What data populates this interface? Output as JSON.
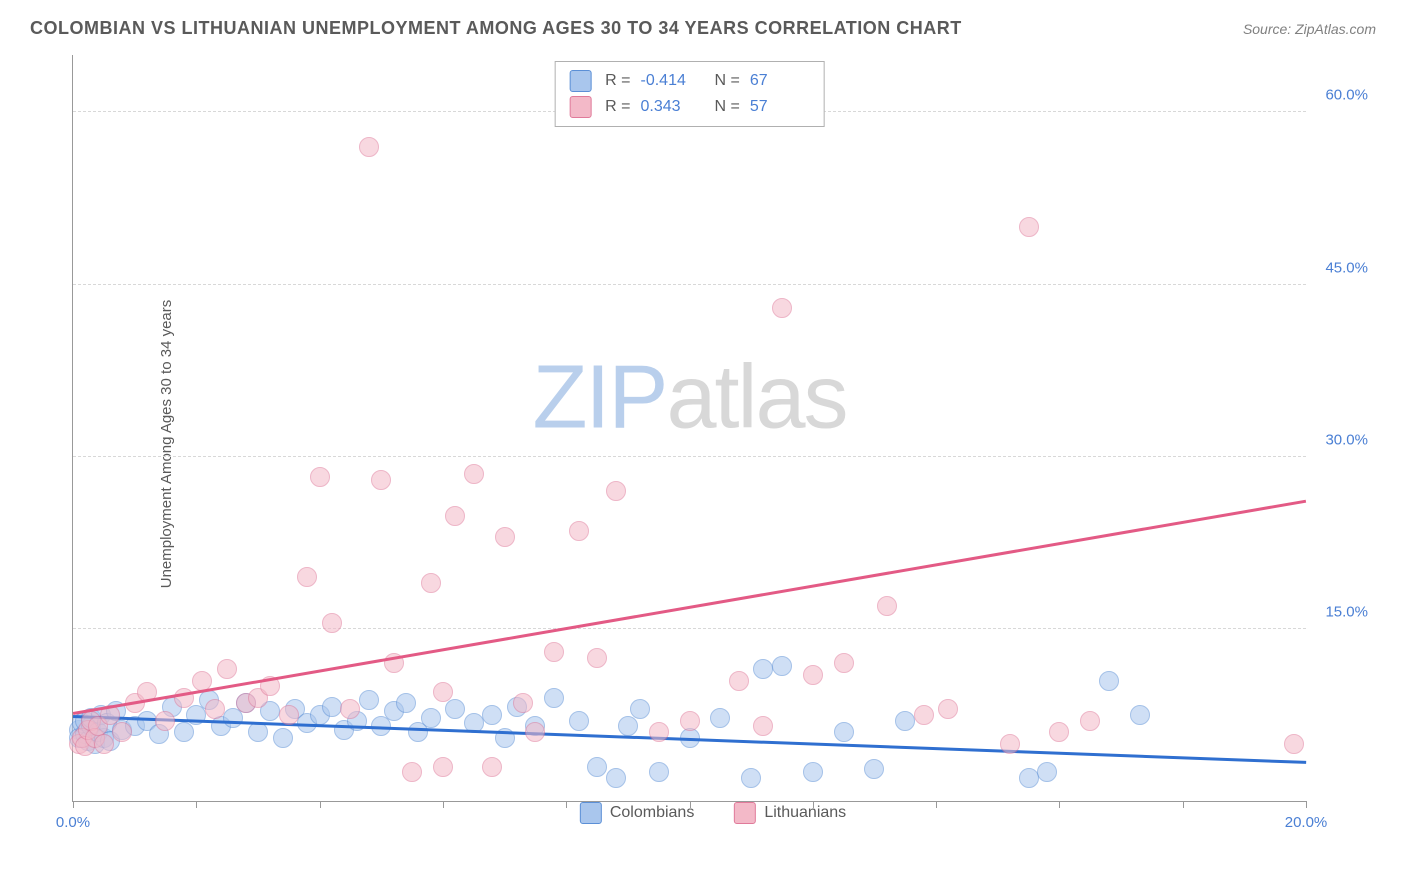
{
  "header": {
    "title": "COLOMBIAN VS LITHUANIAN UNEMPLOYMENT AMONG AGES 30 TO 34 YEARS CORRELATION CHART",
    "source": "Source: ZipAtlas.com"
  },
  "chart": {
    "type": "scatter",
    "ylabel": "Unemployment Among Ages 30 to 34 years",
    "xlim": [
      0,
      20
    ],
    "ylim": [
      0,
      65
    ],
    "xtick_positions": [
      0,
      2,
      4,
      6,
      8,
      10,
      12,
      14,
      16,
      18,
      20
    ],
    "xtick_labels": {
      "0": "0.0%",
      "20": "20.0%"
    },
    "ytick_positions": [
      15,
      30,
      45,
      60
    ],
    "ytick_labels": {
      "15": "15.0%",
      "30": "30.0%",
      "45": "45.0%",
      "60": "60.0%"
    },
    "xtick_label_color": "#4a7fd4",
    "ytick_label_color": "#4a7fd4",
    "grid_color": "#d8d8d8",
    "background_color": "#ffffff",
    "watermark": {
      "text_bold": "ZIP",
      "text_light": "atlas"
    },
    "series": [
      {
        "name": "Colombians",
        "fill_color": "#a9c6ed",
        "stroke_color": "#5b8fd6",
        "fill_opacity": 0.55,
        "marker_radius": 10,
        "trend": {
          "x1": 0,
          "y1": 7.2,
          "x2": 20,
          "y2": 3.2,
          "color": "#2f6fd0",
          "width": 3
        },
        "R": "-0.414",
        "N": "67",
        "points": [
          [
            0.1,
            6.2
          ],
          [
            0.1,
            5.5
          ],
          [
            0.15,
            6.8
          ],
          [
            0.2,
            5.8
          ],
          [
            0.2,
            7.0
          ],
          [
            0.25,
            5.2
          ],
          [
            0.3,
            6.5
          ],
          [
            0.3,
            7.2
          ],
          [
            0.35,
            5.0
          ],
          [
            0.4,
            6.0
          ],
          [
            0.45,
            7.5
          ],
          [
            0.5,
            5.5
          ],
          [
            0.55,
            6.8
          ],
          [
            0.6,
            5.2
          ],
          [
            0.7,
            7.8
          ],
          [
            0.8,
            6.2
          ],
          [
            1.0,
            6.5
          ],
          [
            1.2,
            7.0
          ],
          [
            1.4,
            5.8
          ],
          [
            1.6,
            8.2
          ],
          [
            1.8,
            6.0
          ],
          [
            2.0,
            7.5
          ],
          [
            2.2,
            8.8
          ],
          [
            2.4,
            6.5
          ],
          [
            2.6,
            7.2
          ],
          [
            2.8,
            8.5
          ],
          [
            3.0,
            6.0
          ],
          [
            3.2,
            7.8
          ],
          [
            3.4,
            5.5
          ],
          [
            3.6,
            8.0
          ],
          [
            3.8,
            6.8
          ],
          [
            4.0,
            7.5
          ],
          [
            4.2,
            8.2
          ],
          [
            4.4,
            6.2
          ],
          [
            4.6,
            7.0
          ],
          [
            4.8,
            8.8
          ],
          [
            5.0,
            6.5
          ],
          [
            5.2,
            7.8
          ],
          [
            5.4,
            8.5
          ],
          [
            5.6,
            6.0
          ],
          [
            5.8,
            7.2
          ],
          [
            6.2,
            8.0
          ],
          [
            6.5,
            6.8
          ],
          [
            6.8,
            7.5
          ],
          [
            7.0,
            5.5
          ],
          [
            7.2,
            8.2
          ],
          [
            7.5,
            6.5
          ],
          [
            7.8,
            9.0
          ],
          [
            8.2,
            7.0
          ],
          [
            8.5,
            3.0
          ],
          [
            8.8,
            2.0
          ],
          [
            9.0,
            6.5
          ],
          [
            9.2,
            8.0
          ],
          [
            9.5,
            2.5
          ],
          [
            10.0,
            5.5
          ],
          [
            10.5,
            7.2
          ],
          [
            11.0,
            2.0
          ],
          [
            11.2,
            11.5
          ],
          [
            11.5,
            11.8
          ],
          [
            12.0,
            2.5
          ],
          [
            12.5,
            6.0
          ],
          [
            13.0,
            2.8
          ],
          [
            13.5,
            7.0
          ],
          [
            15.5,
            2.0
          ],
          [
            15.8,
            2.5
          ],
          [
            16.8,
            10.5
          ],
          [
            17.3,
            7.5
          ]
        ]
      },
      {
        "name": "Lithuanians",
        "fill_color": "#f3b9c8",
        "stroke_color": "#e07a9a",
        "fill_opacity": 0.55,
        "marker_radius": 10,
        "trend": {
          "x1": 0,
          "y1": 7.5,
          "x2": 20,
          "y2": 26.0,
          "color": "#e35a85",
          "width": 2.5
        },
        "R": "0.343",
        "N": "57",
        "points": [
          [
            0.1,
            5.0
          ],
          [
            0.15,
            5.5
          ],
          [
            0.2,
            4.8
          ],
          [
            0.25,
            6.2
          ],
          [
            0.3,
            7.0
          ],
          [
            0.35,
            5.5
          ],
          [
            0.4,
            6.5
          ],
          [
            0.5,
            5.0
          ],
          [
            0.6,
            7.5
          ],
          [
            0.8,
            6.0
          ],
          [
            1.0,
            8.5
          ],
          [
            1.2,
            9.5
          ],
          [
            1.5,
            7.0
          ],
          [
            1.8,
            9.0
          ],
          [
            2.1,
            10.5
          ],
          [
            2.3,
            8.0
          ],
          [
            2.5,
            11.5
          ],
          [
            2.8,
            8.5
          ],
          [
            3.0,
            9.0
          ],
          [
            3.2,
            10.0
          ],
          [
            3.5,
            7.5
          ],
          [
            3.8,
            19.5
          ],
          [
            4.0,
            28.2
          ],
          [
            4.2,
            15.5
          ],
          [
            4.5,
            8.0
          ],
          [
            4.8,
            57.0
          ],
          [
            5.0,
            28.0
          ],
          [
            5.2,
            12.0
          ],
          [
            5.5,
            2.5
          ],
          [
            5.8,
            19.0
          ],
          [
            6.0,
            9.5
          ],
          [
            6.2,
            24.8
          ],
          [
            6.5,
            28.5
          ],
          [
            6.8,
            3.0
          ],
          [
            7.0,
            23.0
          ],
          [
            7.3,
            8.5
          ],
          [
            7.8,
            13.0
          ],
          [
            8.2,
            23.5
          ],
          [
            8.5,
            12.5
          ],
          [
            8.8,
            27.0
          ],
          [
            9.5,
            6.0
          ],
          [
            10.0,
            7.0
          ],
          [
            10.8,
            10.5
          ],
          [
            11.2,
            6.5
          ],
          [
            11.5,
            43.0
          ],
          [
            12.0,
            11.0
          ],
          [
            12.5,
            12.0
          ],
          [
            13.2,
            17.0
          ],
          [
            13.8,
            7.5
          ],
          [
            14.2,
            8.0
          ],
          [
            15.2,
            5.0
          ],
          [
            15.5,
            50.0
          ],
          [
            16.0,
            6.0
          ],
          [
            16.5,
            7.0
          ],
          [
            19.8,
            5.0
          ],
          [
            6.0,
            3.0
          ],
          [
            7.5,
            6.0
          ]
        ]
      }
    ],
    "legend_top": {
      "rows": [
        {
          "swatch_fill": "#a9c6ed",
          "swatch_stroke": "#5b8fd6",
          "R_label": "R =",
          "R_value": "-0.414",
          "N_label": "N =",
          "N_value": "67"
        },
        {
          "swatch_fill": "#f3b9c8",
          "swatch_stroke": "#e07a9a",
          "R_label": "R =",
          "R_value": "0.343",
          "N_label": "N =",
          "N_value": "57"
        }
      ],
      "value_color": "#4a7fd4"
    },
    "legend_bottom": {
      "items": [
        {
          "swatch_fill": "#a9c6ed",
          "swatch_stroke": "#5b8fd6",
          "label": "Colombians"
        },
        {
          "swatch_fill": "#f3b9c8",
          "swatch_stroke": "#e07a9a",
          "label": "Lithuanians"
        }
      ]
    }
  }
}
